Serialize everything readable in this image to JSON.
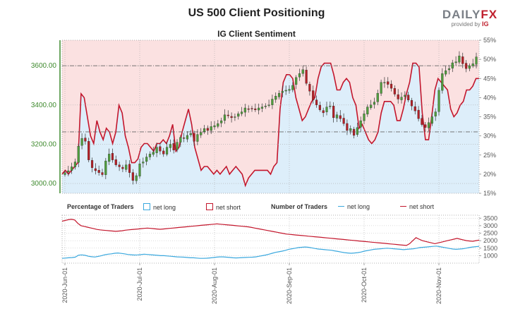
{
  "title": "US 500 Client Positioning",
  "subtitle": "IG Client Sentiment",
  "brand": {
    "name_part1": "DAILY",
    "name_part2": "FX",
    "tagline": "provided by",
    "tagline_brand": "IG"
  },
  "colors": {
    "net_long": "#3aa8de",
    "net_short": "#c3162c",
    "up_candle": "#4f9c3d",
    "down_candle": "#b32026",
    "long_fill": "#ddeefa",
    "short_fill": "#fbe1e1",
    "price_axis": "#3f8a2e"
  },
  "legend": {
    "percentage_label": "Percentage of Traders",
    "number_label": "Number of Traders",
    "net_long": "net long",
    "net_short": "net short"
  },
  "chart_data": [
    {
      "type": "candlestick",
      "title": "IG Client Sentiment",
      "y_left_ticks": [
        "3000.00",
        "3200.00",
        "3400.00",
        "3600.00"
      ],
      "y_left_range": [
        2950,
        3730
      ],
      "y_right_ticks": [
        "15%",
        "20%",
        "25%",
        "30%",
        "35%",
        "40%",
        "45%",
        "50%",
        "55%"
      ],
      "y_right_range": [
        15,
        55
      ],
      "reference_levels": [
        3600,
        3263
      ],
      "close_series": [
        3055,
        3065,
        3085,
        3110,
        3190,
        3230,
        3215,
        3120,
        3080,
        3065,
        3055,
        3045,
        3115,
        3150,
        3120,
        3095,
        3085,
        3075,
        3095,
        3055,
        3015,
        3040,
        3100,
        3110,
        3135,
        3150,
        3160,
        3185,
        3165,
        3150,
        3185,
        3200,
        3170,
        3210,
        3235,
        3230,
        3245,
        3255,
        3215,
        3250,
        3260,
        3280,
        3270,
        3290,
        3295,
        3305,
        3320,
        3350,
        3345,
        3335,
        3340,
        3355,
        3365,
        3385,
        3380,
        3380,
        3375,
        3385,
        3390,
        3395,
        3400,
        3430,
        3445,
        3460,
        3470,
        3475,
        3480,
        3500,
        3540,
        3560,
        3580,
        3510,
        3470,
        3425,
        3400,
        3375,
        3360,
        3390,
        3395,
        3335,
        3350,
        3330,
        3305,
        3270,
        3280,
        3245,
        3285,
        3320,
        3355,
        3390,
        3400,
        3415,
        3460,
        3515,
        3515,
        3505,
        3485,
        3455,
        3430,
        3440,
        3450,
        3425,
        3395,
        3370,
        3330,
        3300,
        3285,
        3310,
        3340,
        3365,
        3475,
        3560,
        3575,
        3585,
        3615,
        3620,
        3650,
        3610,
        3585,
        3600,
        3610,
        3645
      ],
      "net_long_pct_series": [
        20,
        21,
        20,
        21,
        22,
        23,
        41,
        40,
        35,
        30,
        28,
        34,
        31,
        29,
        32,
        31,
        28,
        31,
        38,
        36,
        30,
        27,
        23,
        23,
        24,
        27,
        28,
        28,
        27,
        26,
        28,
        28,
        29,
        28,
        30,
        33,
        26,
        27,
        31,
        34,
        37,
        33,
        27,
        24,
        21,
        22,
        22,
        21,
        20,
        21,
        20,
        21,
        22,
        20,
        21,
        22,
        21,
        20,
        17,
        19,
        20,
        21,
        21,
        21,
        21,
        21,
        20,
        22,
        23,
        37,
        44,
        46,
        46,
        45,
        40,
        37,
        34,
        35,
        37,
        39,
        40,
        45,
        48,
        49,
        49,
        49,
        46,
        42,
        42,
        44,
        45,
        44,
        40,
        38,
        32,
        33,
        31,
        29,
        28,
        29,
        31,
        36,
        39,
        39,
        39,
        38,
        34,
        34,
        37,
        41,
        44,
        49,
        49,
        48,
        36,
        29,
        29,
        35,
        42,
        45,
        44,
        43,
        42,
        37,
        35,
        36,
        38,
        39,
        42,
        42,
        43,
        45,
        45
      ],
      "net_short_pct_series": [
        80,
        79,
        80,
        79,
        78,
        77,
        59,
        60,
        65,
        70,
        72,
        66,
        69,
        71,
        68,
        69,
        72,
        69,
        62,
        64,
        70,
        73,
        77,
        77,
        76,
        73,
        72,
        72,
        73,
        74,
        72,
        72,
        71,
        72,
        70,
        67,
        74,
        73,
        69,
        66,
        63,
        67,
        73,
        76,
        79,
        78,
        78,
        79,
        80,
        79,
        80,
        79,
        78,
        80,
        79,
        78,
        79,
        80,
        83,
        81,
        80,
        79,
        79,
        79,
        79,
        79,
        80,
        78,
        77,
        63,
        56,
        54,
        54,
        55,
        60,
        63,
        66,
        65,
        63,
        61,
        60,
        55,
        52,
        51,
        51,
        51,
        54,
        58,
        58,
        56,
        55,
        56,
        60,
        62,
        68,
        67,
        69,
        71,
        72,
        71,
        69,
        64,
        61,
        61,
        61,
        62,
        66,
        66,
        63,
        59,
        56,
        51,
        51,
        52,
        64,
        71,
        71,
        65,
        58,
        55,
        56,
        57,
        58,
        63,
        65,
        64,
        62,
        61,
        58,
        58,
        57,
        55,
        55
      ]
    },
    {
      "type": "line",
      "title": "",
      "x_tick_labels": [
        "2020-Jun-01",
        "2020-Jul-01",
        "2020-Aug-01",
        "2020-Sep-01",
        "2020-Oct-01",
        "2020-Nov-01"
      ],
      "y_right_ticks": [
        "1000",
        "1500",
        "2000",
        "2500",
        "3000",
        "3500"
      ],
      "y_range": [
        500,
        3700
      ],
      "series": [
        {
          "name": "net long",
          "values": [
            820,
            840,
            860,
            870,
            900,
            1030,
            1050,
            1020,
            960,
            930,
            910,
            950,
            1000,
            1060,
            1100,
            1120,
            1160,
            1180,
            1150,
            1120,
            1080,
            1060,
            1040,
            1050,
            1070,
            1100,
            1080,
            1060,
            1040,
            1020,
            1000,
            1000,
            980,
            960,
            940,
            920,
            910,
            900,
            880,
            860,
            860,
            840,
            820,
            820,
            830,
            850,
            870,
            900,
            920,
            920,
            900,
            880,
            860,
            850,
            860,
            870,
            880,
            890,
            900,
            920,
            960,
            1000,
            1040,
            1100,
            1160,
            1220,
            1260,
            1300,
            1350,
            1420,
            1460,
            1500,
            1540,
            1560,
            1580,
            1560,
            1520,
            1480,
            1440,
            1420,
            1400,
            1380,
            1360,
            1320,
            1280,
            1240,
            1200,
            1180,
            1160,
            1180,
            1200,
            1240,
            1300,
            1340,
            1380,
            1420,
            1440,
            1460,
            1480,
            1500,
            1480,
            1460,
            1440,
            1420,
            1400,
            1420,
            1440,
            1460,
            1500,
            1540,
            1560,
            1580,
            1600,
            1620,
            1640,
            1600,
            1560,
            1520,
            1480,
            1440,
            1420,
            1440,
            1460,
            1500,
            1540,
            1580,
            1600,
            1620
          ]
        },
        {
          "name": "net short",
          "values": [
            3300,
            3350,
            3400,
            3420,
            3380,
            3150,
            3000,
            2950,
            2900,
            2850,
            2800,
            2750,
            2720,
            2700,
            2680,
            2660,
            2640,
            2620,
            2640,
            2660,
            2700,
            2720,
            2740,
            2760,
            2780,
            2800,
            2820,
            2840,
            2820,
            2800,
            2780,
            2760,
            2780,
            2800,
            2820,
            2840,
            2860,
            2880,
            2900,
            2920,
            2940,
            2960,
            2980,
            3000,
            3020,
            3040,
            3060,
            3080,
            3100,
            3120,
            3100,
            3080,
            3060,
            3040,
            3020,
            3000,
            2980,
            2960,
            2940,
            2920,
            2880,
            2840,
            2800,
            2760,
            2720,
            2680,
            2640,
            2600,
            2560,
            2520,
            2480,
            2440,
            2420,
            2400,
            2380,
            2360,
            2340,
            2320,
            2300,
            2280,
            2260,
            2240,
            2220,
            2200,
            2180,
            2160,
            2140,
            2120,
            2100,
            2080,
            2060,
            2040,
            2020,
            2000,
            1980,
            1960,
            1940,
            1920,
            1900,
            1880,
            1860,
            1840,
            1820,
            1800,
            1780,
            1760,
            1740,
            1720,
            1700,
            1680,
            1800,
            2000,
            2200,
            2100,
            2000,
            1950,
            1900,
            1850,
            1800,
            1850,
            1900,
            1950,
            2000,
            2050,
            2100,
            2150,
            2100,
            2050,
            2000,
            1980,
            1960,
            2000,
            2040
          ]
        }
      ]
    }
  ]
}
